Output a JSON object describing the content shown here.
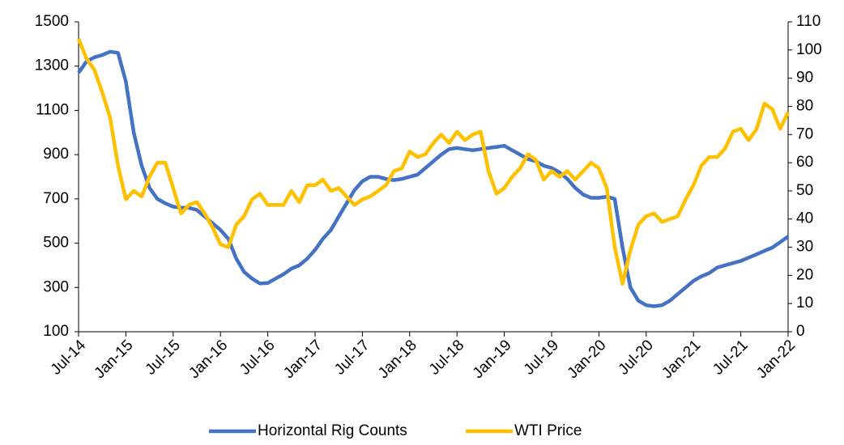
{
  "chart_data": {
    "type": "line",
    "categories": [
      "Jul-14",
      null,
      null,
      null,
      null,
      null,
      "Jan-15",
      null,
      null,
      null,
      null,
      null,
      "Jul-15",
      null,
      null,
      null,
      null,
      null,
      "Jan-16",
      null,
      null,
      null,
      null,
      null,
      "Jul-16",
      null,
      null,
      null,
      null,
      null,
      "Jan-17",
      null,
      null,
      null,
      null,
      null,
      "Jul-17",
      null,
      null,
      null,
      null,
      null,
      "Jan-18",
      null,
      null,
      null,
      null,
      null,
      "Jul-18",
      null,
      null,
      null,
      null,
      null,
      "Jan-19",
      null,
      null,
      null,
      null,
      null,
      "Jul-19",
      null,
      null,
      null,
      null,
      null,
      "Jan-20",
      null,
      null,
      null,
      null,
      null,
      "Jul-20",
      null,
      null,
      null,
      null,
      null,
      "Jan-21",
      null,
      null,
      null,
      null,
      null,
      "Jul-21",
      null,
      null,
      null,
      null,
      null,
      "Jan-22"
    ],
    "series": [
      {
        "name": "Horizontal Rig Counts",
        "color": "#4472c4",
        "values": [
          1270,
          1320,
          1340,
          1350,
          1365,
          1360,
          1230,
          1000,
          850,
          750,
          700,
          680,
          665,
          660,
          660,
          650,
          620,
          590,
          560,
          520,
          430,
          370,
          340,
          318,
          320,
          340,
          360,
          385,
          400,
          430,
          470,
          520,
          560,
          620,
          680,
          740,
          780,
          800,
          800,
          790,
          785,
          790,
          800,
          810,
          840,
          870,
          900,
          925,
          930,
          925,
          920,
          925,
          930,
          935,
          940,
          920,
          900,
          880,
          870,
          850,
          840,
          820,
          790,
          750,
          720,
          705,
          705,
          710,
          700,
          480,
          300,
          240,
          220,
          215,
          220,
          240,
          270,
          300,
          330,
          350,
          365,
          390,
          400,
          410,
          420,
          435,
          450,
          465,
          480,
          505,
          530
        ]
      },
      {
        "name": "WTI Price",
        "color": "#ffc000",
        "axis": "y2",
        "values": [
          104,
          97,
          93,
          85,
          76,
          59,
          47,
          50,
          48,
          55,
          60,
          60,
          51,
          42,
          45,
          46,
          42,
          37,
          31,
          30,
          38,
          41,
          47,
          49,
          45,
          45,
          45,
          50,
          46,
          52,
          52,
          54,
          50,
          51,
          48,
          45,
          47,
          48,
          50,
          52,
          57,
          58,
          64,
          62,
          63,
          67,
          70,
          67,
          71,
          68,
          70,
          71,
          57,
          49,
          51,
          55,
          58,
          63,
          61,
          54,
          57,
          55,
          57,
          54,
          57,
          60,
          58,
          51,
          30,
          17,
          29,
          38,
          41,
          42,
          39,
          40,
          41,
          47,
          52,
          59,
          62,
          62,
          65,
          71,
          72,
          68,
          72,
          81,
          79,
          72,
          78
        ]
      }
    ],
    "ylim": [
      100,
      1500
    ],
    "yticks": [
      100,
      300,
      500,
      700,
      900,
      1100,
      1300,
      1500
    ],
    "y2lim": [
      0,
      110
    ],
    "y2ticks": [
      0,
      10,
      20,
      30,
      40,
      50,
      60,
      70,
      80,
      90,
      100,
      110
    ],
    "legend": "bottom"
  }
}
